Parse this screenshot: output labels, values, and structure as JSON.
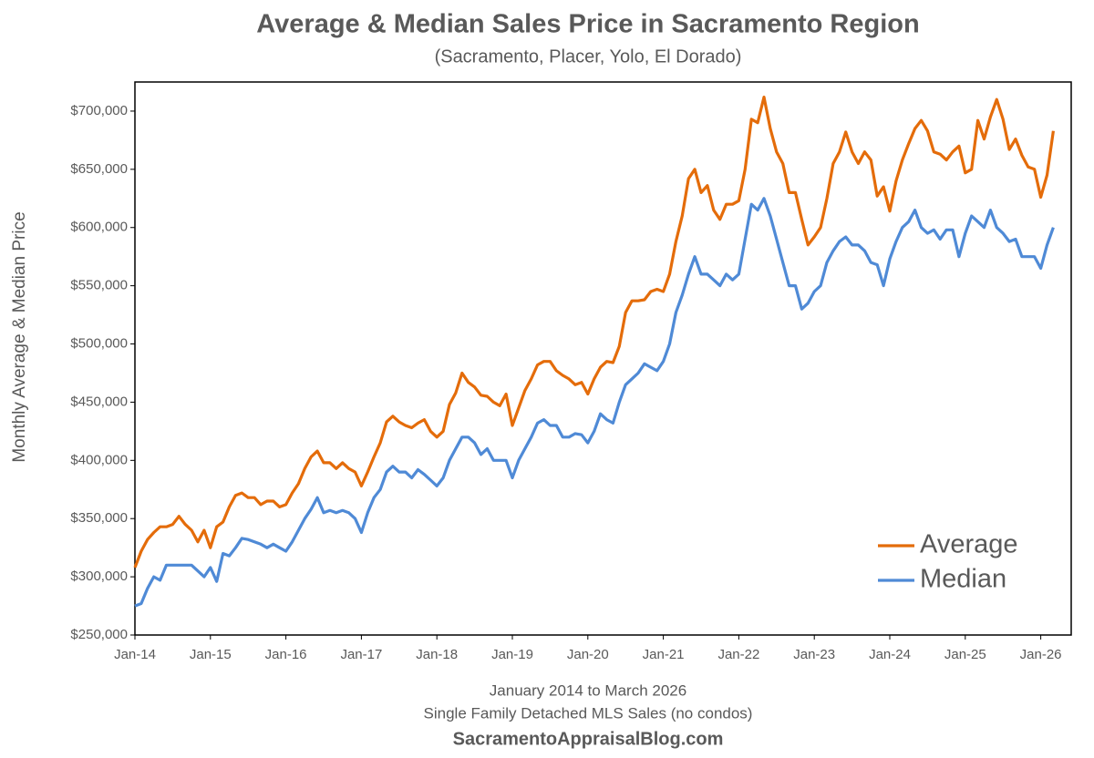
{
  "chart_data": {
    "type": "line",
    "title": "Average & Median Sales Price in Sacramento Region",
    "subtitle": "(Sacramento, Placer, Yolo, El Dorado)",
    "y_label": "Monthly Average & Median Price",
    "x_label": "January 2014 to March 2026",
    "note": "Single Family Detached MLS Sales (no condos)",
    "source": "SacramentoAppraisalBlog.com",
    "categories": [
      "Jan-14",
      null,
      null,
      null,
      null,
      null,
      null,
      null,
      null,
      null,
      null,
      null,
      "Jan-15",
      null,
      null,
      null,
      null,
      null,
      null,
      null,
      null,
      null,
      null,
      null,
      "Jan-16",
      null,
      null,
      null,
      null,
      null,
      null,
      null,
      null,
      null,
      null,
      null,
      "Jan-17",
      null,
      null,
      null,
      null,
      null,
      null,
      null,
      null,
      null,
      null,
      null,
      "Jan-18",
      null,
      null,
      null,
      null,
      null,
      null,
      null,
      null,
      null,
      null,
      null,
      "Jan-19",
      null,
      null,
      null,
      null,
      null,
      null,
      null,
      null,
      null,
      null,
      null,
      "Jan-20",
      null,
      null,
      null,
      null,
      null,
      null,
      null,
      null,
      null,
      null,
      null,
      "Jan-21",
      null,
      null,
      null,
      null,
      null,
      null,
      null,
      null,
      null,
      null,
      null,
      "Jan-22",
      null,
      null,
      null,
      null,
      null,
      null,
      null,
      null,
      null,
      null,
      null,
      "Jan-23",
      null,
      null,
      null,
      null,
      null,
      null,
      null,
      null,
      null,
      null,
      null,
      "Jan-24",
      null,
      null,
      null,
      null,
      null,
      null,
      null,
      null,
      null,
      null,
      null,
      "Jan-25",
      null,
      null,
      null,
      null,
      null,
      null,
      null,
      null,
      null,
      null,
      null,
      "Jan-26",
      null,
      null
    ],
    "series": [
      {
        "name": "Average",
        "color": "#e46c0a",
        "values": [
          308000,
          322000,
          332000,
          338000,
          343000,
          343000,
          345000,
          352000,
          345000,
          340000,
          330000,
          340000,
          325000,
          343000,
          347000,
          360000,
          370000,
          372000,
          368000,
          368000,
          362000,
          365000,
          365000,
          360000,
          362000,
          372000,
          380000,
          393000,
          403000,
          408000,
          398000,
          398000,
          393000,
          398000,
          393000,
          390000,
          378000,
          390000,
          403000,
          415000,
          433000,
          438000,
          433000,
          430000,
          428000,
          432000,
          435000,
          425000,
          420000,
          425000,
          448000,
          458000,
          475000,
          467000,
          463000,
          456000,
          455000,
          450000,
          447000,
          457000,
          430000,
          445000,
          460000,
          470000,
          482000,
          485000,
          485000,
          477000,
          473000,
          470000,
          465000,
          467000,
          457000,
          470000,
          480000,
          485000,
          484000,
          498000,
          527000,
          537000,
          537000,
          538000,
          545000,
          547000,
          545000,
          560000,
          588000,
          610000,
          642000,
          650000,
          630000,
          636000,
          615000,
          607000,
          620000,
          620000,
          623000,
          650000,
          693000,
          690000,
          712000,
          685000,
          665000,
          655000,
          630000,
          630000,
          607000,
          585000,
          592000,
          600000,
          625000,
          655000,
          665000,
          682000,
          665000,
          655000,
          665000,
          658000,
          627000,
          635000,
          614000,
          640000,
          658000,
          672000,
          685000,
          692000,
          683000,
          665000,
          663000,
          658000,
          665000,
          670000,
          647000,
          650000,
          692000,
          676000,
          695000,
          710000,
          693000,
          667000,
          676000,
          662000,
          652000,
          650000,
          626000,
          645000,
          683000
        ]
      },
      {
        "name": "Median",
        "color": "#4f8ad6",
        "values": [
          275000,
          277000,
          290000,
          300000,
          297000,
          310000,
          310000,
          310000,
          310000,
          310000,
          305000,
          300000,
          308000,
          296000,
          320000,
          318000,
          325000,
          333000,
          332000,
          330000,
          328000,
          325000,
          328000,
          325000,
          322000,
          330000,
          340000,
          350000,
          358000,
          368000,
          355000,
          357000,
          355000,
          357000,
          355000,
          350000,
          338000,
          355000,
          368000,
          375000,
          390000,
          395000,
          390000,
          390000,
          385000,
          392000,
          388000,
          383000,
          378000,
          385000,
          400000,
          410000,
          420000,
          420000,
          415000,
          405000,
          410000,
          400000,
          400000,
          400000,
          385000,
          400000,
          410000,
          420000,
          432000,
          435000,
          430000,
          430000,
          420000,
          420000,
          423000,
          422000,
          415000,
          425000,
          440000,
          435000,
          432000,
          450000,
          465000,
          470000,
          475000,
          483000,
          480000,
          477000,
          485000,
          500000,
          527000,
          542000,
          560000,
          575000,
          560000,
          560000,
          555000,
          550000,
          560000,
          555000,
          560000,
          590000,
          620000,
          615000,
          625000,
          610000,
          590000,
          570000,
          550000,
          550000,
          530000,
          535000,
          545000,
          550000,
          570000,
          580000,
          588000,
          592000,
          585000,
          585000,
          580000,
          570000,
          568000,
          550000,
          573000,
          588000,
          600000,
          605000,
          615000,
          600000,
          595000,
          598000,
          590000,
          598000,
          598000,
          575000,
          595000,
          610000,
          605000,
          600000,
          615000,
          600000,
          595000,
          588000,
          590000,
          575000,
          575000,
          575000,
          565000,
          585000,
          600000
        ]
      }
    ],
    "ylim": [
      250000,
      725000
    ],
    "yticks": [
      {
        "value": 250000,
        "label": "$250,000"
      },
      {
        "value": 300000,
        "label": "$300,000"
      },
      {
        "value": 350000,
        "label": "$350,000"
      },
      {
        "value": 400000,
        "label": "$400,000"
      },
      {
        "value": 450000,
        "label": "$450,000"
      },
      {
        "value": 500000,
        "label": "$500,000"
      },
      {
        "value": 550000,
        "label": "$550,000"
      },
      {
        "value": 600000,
        "label": "$600,000"
      },
      {
        "value": 650000,
        "label": "$650,000"
      },
      {
        "value": 700000,
        "label": "$700,000"
      }
    ],
    "grid": false,
    "legend": "lower right"
  }
}
